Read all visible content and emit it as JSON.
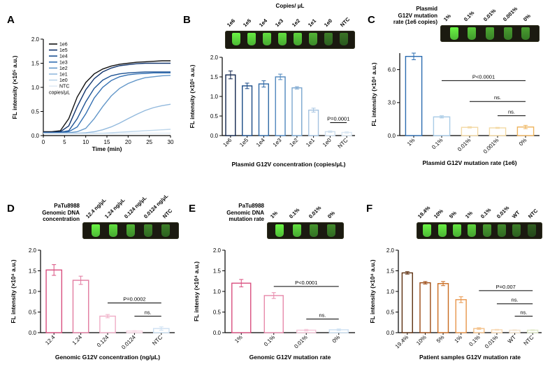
{
  "figure": {
    "background": "#ffffff"
  },
  "chart_data": [
    {
      "panel": "A",
      "type": "line",
      "xlabel": "Time (min)",
      "ylabel": "FL intensity (×10⁵ a.u.)",
      "xlim": [
        0,
        30
      ],
      "xticks": [
        "0",
        "5",
        "10",
        "15",
        "20",
        "25",
        "30"
      ],
      "ylim": [
        0,
        2.0
      ],
      "yticks": [
        "0.0",
        "0.5",
        "1.0",
        "1.5",
        "2.0"
      ],
      "legend_note": "copies/μL",
      "x": [
        0,
        2,
        4,
        6,
        8,
        10,
        12,
        14,
        16,
        18,
        20,
        22,
        24,
        26,
        28,
        30
      ],
      "series": [
        {
          "name": "1e6",
          "color": "#111111",
          "values": [
            0.08,
            0.08,
            0.1,
            0.35,
            0.8,
            1.1,
            1.28,
            1.38,
            1.44,
            1.48,
            1.5,
            1.52,
            1.53,
            1.54,
            1.55,
            1.55
          ]
        },
        {
          "name": "1e5",
          "color": "#12356e",
          "values": [
            0.07,
            0.07,
            0.08,
            0.2,
            0.6,
            0.95,
            1.18,
            1.32,
            1.4,
            1.45,
            1.47,
            1.49,
            1.5,
            1.5,
            1.5,
            1.5
          ]
        },
        {
          "name": "1e4",
          "color": "#1d5293",
          "values": [
            0.06,
            0.06,
            0.07,
            0.1,
            0.35,
            0.7,
            0.98,
            1.15,
            1.24,
            1.28,
            1.3,
            1.31,
            1.32,
            1.32,
            1.32,
            1.32
          ]
        },
        {
          "name": "1e3",
          "color": "#326fb2",
          "values": [
            0.06,
            0.06,
            0.06,
            0.08,
            0.18,
            0.45,
            0.78,
            1.0,
            1.14,
            1.22,
            1.26,
            1.28,
            1.29,
            1.3,
            1.3,
            1.3
          ]
        },
        {
          "name": "1e2",
          "color": "#6397c9",
          "values": [
            0.05,
            0.05,
            0.05,
            0.06,
            0.08,
            0.15,
            0.35,
            0.6,
            0.82,
            0.98,
            1.08,
            1.15,
            1.2,
            1.22,
            1.24,
            1.25
          ]
        },
        {
          "name": "1e1",
          "color": "#92b9dd",
          "values": [
            0.05,
            0.05,
            0.05,
            0.05,
            0.05,
            0.06,
            0.08,
            0.12,
            0.18,
            0.26,
            0.35,
            0.44,
            0.52,
            0.58,
            0.62,
            0.65
          ]
        },
        {
          "name": "1e0",
          "color": "#bdd6eb",
          "values": [
            0.04,
            0.04,
            0.04,
            0.04,
            0.04,
            0.04,
            0.05,
            0.05,
            0.06,
            0.07,
            0.08,
            0.09,
            0.1,
            0.11,
            0.12,
            0.13
          ]
        },
        {
          "name": "NTC",
          "color": "#e0ebf5",
          "values": [
            0.04,
            0.04,
            0.04,
            0.04,
            0.04,
            0.04,
            0.04,
            0.04,
            0.04,
            0.04,
            0.05,
            0.05,
            0.05,
            0.05,
            0.05,
            0.05
          ]
        }
      ]
    },
    {
      "panel": "B",
      "type": "bar",
      "xlabel": "Plasmid G12V concentration (copies/μL)",
      "ylabel": "FL intensity (×10⁵ a.u.)",
      "ylim": [
        0,
        2.0
      ],
      "yticks": [
        "0.0",
        "0.5",
        "1.0",
        "1.5",
        "2.0"
      ],
      "categories": [
        "1e6",
        "1e5",
        "1e4",
        "1e3",
        "1e2",
        "1e1",
        "1e0",
        "NTC"
      ],
      "values": [
        1.55,
        1.27,
        1.32,
        1.5,
        1.22,
        0.65,
        0.1,
        0.08
      ],
      "errors": [
        0.1,
        0.07,
        0.08,
        0.07,
        0.03,
        0.05,
        0.02,
        0.02
      ],
      "bar_colors": [
        "#12264e",
        "#1a4a85",
        "#2e68a5",
        "#4f86bd",
        "#7aa6cf",
        "#a5c3e0",
        "#cfdfee",
        "#dce8f3"
      ],
      "annotations": [
        {
          "text": "P=0.0001",
          "from": 6,
          "to": 7,
          "y": 0.33
        }
      ],
      "inset": {
        "title_lines": [
          "Copies/ μL"
        ],
        "labels": [
          "1e6",
          "1e5",
          "1e4",
          "1e3",
          "1e2",
          "1e1",
          "1e0",
          "NTC"
        ],
        "brightness": [
          0.95,
          0.9,
          0.85,
          0.85,
          0.8,
          0.65,
          0.4,
          0.35
        ]
      }
    },
    {
      "panel": "C",
      "type": "bar",
      "xlabel": "Plasmid G12V mutation rate (1e6)",
      "ylabel": "FL intensity (×10⁴ a.u.)",
      "ylim": [
        0,
        7.5
      ],
      "yticks": [
        "0.0",
        "3.0",
        "6.0"
      ],
      "categories": [
        "1%",
        "0.1%",
        "0.01%",
        "0.001%",
        "0%"
      ],
      "values": [
        7.2,
        1.7,
        0.75,
        0.7,
        0.78
      ],
      "errors": [
        0.3,
        0.1,
        0.06,
        0.05,
        0.15
      ],
      "bar_colors": [
        "#2b6cb0",
        "#a9cbe6",
        "#f3d9a4",
        "#f3d9a4",
        "#eeb45c"
      ],
      "annotations": [
        {
          "text": "P<0.0001",
          "from": 1,
          "to": 4,
          "y": 5.0
        },
        {
          "text": "ns.",
          "from": 2,
          "to": 4,
          "y": 3.1
        },
        {
          "text": "ns.",
          "from": 3,
          "to": 4,
          "y": 1.8
        }
      ],
      "inset": {
        "title_lines": [
          "Plasmid",
          "G12V mutation",
          "rate (1e6 copies)"
        ],
        "labels": [
          "1%",
          "0.1%",
          "0.01%",
          "0.001%",
          "0%"
        ],
        "brightness": [
          0.95,
          0.75,
          0.6,
          0.55,
          0.55
        ]
      }
    },
    {
      "panel": "D",
      "type": "bar",
      "xlabel": "Genomic G12V concentration (ng/μL)",
      "ylabel": "FL intensity (×10⁴ a.u.)",
      "ylim": [
        0,
        2.0
      ],
      "yticks": [
        "0.0",
        "0.5",
        "1.0",
        "1.5",
        "2.0"
      ],
      "categories": [
        "12.4",
        "1.24",
        "0.124",
        "0.0124",
        "NTC"
      ],
      "values": [
        1.52,
        1.27,
        0.4,
        0.04,
        0.1
      ],
      "errors": [
        0.13,
        0.1,
        0.04,
        0.01,
        0.04
      ],
      "bar_colors": [
        "#d94f7f",
        "#e27ba0",
        "#efadc6",
        "#f9d9e6",
        "#cde0f2"
      ],
      "annotations": [
        {
          "text": "P=0.0002",
          "from": 2,
          "to": 4,
          "y": 0.72
        },
        {
          "text": "ns.",
          "from": 3,
          "to": 4,
          "y": 0.4
        }
      ],
      "inset": {
        "title_lines": [
          "PaTu8988",
          "Genomic DNA",
          "concentration"
        ],
        "labels": [
          "12.4 ng/μL",
          "1.24 ng/μL",
          "0.124 ng/μL",
          "0.0124 ng/μL",
          "NTC"
        ],
        "brightness": [
          0.95,
          0.85,
          0.65,
          0.45,
          0.4
        ]
      }
    },
    {
      "panel": "E",
      "type": "bar",
      "xlabel": "Genomic G12V mutation rate",
      "ylabel": "FL intensy (×10⁴ a.u.)",
      "ylim": [
        0,
        2.0
      ],
      "yticks": [
        "0.0",
        "0.5",
        "1.0",
        "1.5",
        "2.0"
      ],
      "categories": [
        "1%",
        "0.1%",
        "0.01%",
        "0%"
      ],
      "values": [
        1.2,
        0.9,
        0.06,
        0.07
      ],
      "errors": [
        0.09,
        0.07,
        0.02,
        0.02
      ],
      "bar_colors": [
        "#d94f7f",
        "#e788aa",
        "#f5c6d8",
        "#cde0f2"
      ],
      "annotations": [
        {
          "text": "P<0.0001",
          "from": 1,
          "to": 3,
          "y": 1.12
        },
        {
          "text": "ns.",
          "from": 2,
          "to": 3,
          "y": 0.33
        }
      ],
      "inset": {
        "title_lines": [
          "PaTu8988",
          "Genomic DNA",
          "mutation rate"
        ],
        "labels": [
          "1%",
          "0.1%",
          "0.01%",
          "0%"
        ],
        "brightness": [
          0.95,
          0.85,
          0.5,
          0.45
        ]
      }
    },
    {
      "panel": "F",
      "type": "bar",
      "xlabel": "Patient samples G12V mutation rate",
      "ylabel": "FL intensity (×10⁴ a.u.)",
      "ylim": [
        0,
        2.0
      ],
      "yticks": [
        "0.0",
        "0.5",
        "1.0",
        "1.5",
        "2.0"
      ],
      "categories": [
        "19.4%",
        "10%",
        "5%",
        "1%",
        "0.1%",
        "0.01%",
        "WT",
        "NTC"
      ],
      "values": [
        1.45,
        1.21,
        1.19,
        0.8,
        0.1,
        0.07,
        0.06,
        0.06
      ],
      "errors": [
        0.03,
        0.03,
        0.05,
        0.07,
        0.02,
        0.01,
        0.01,
        0.01
      ],
      "bar_colors": [
        "#5c2e0e",
        "#9c4a12",
        "#c96a1e",
        "#e8954a",
        "#f3bf86",
        "#f8d9b4",
        "#f3e3cd",
        "#dfe8c8"
      ],
      "annotations": [
        {
          "text": "P=0.007",
          "from": 4,
          "to": 7,
          "y": 1.02
        },
        {
          "text": "ns.",
          "from": 5,
          "to": 7,
          "y": 0.7
        },
        {
          "text": "ns.",
          "from": 6,
          "to": 7,
          "y": 0.4
        }
      ],
      "inset": {
        "labels": [
          "19.4%",
          "10%",
          "5%",
          "1%",
          "0.1%",
          "0.01%",
          "WT",
          "NTC"
        ],
        "brightness": [
          0.95,
          0.92,
          0.88,
          0.8,
          0.55,
          0.45,
          0.4,
          0.25
        ]
      }
    }
  ]
}
